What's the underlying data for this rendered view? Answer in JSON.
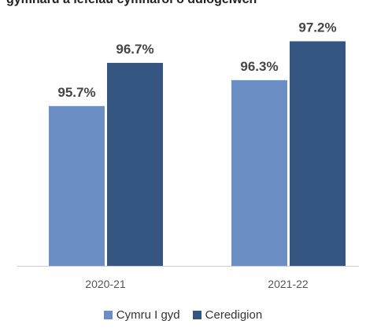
{
  "header_fragment": "gymharu â lefelau cymharol o ddiogelwch",
  "chart_data": {
    "type": "bar",
    "categories": [
      "2020-21",
      "2021-22"
    ],
    "series": [
      {
        "name": "Cymru I gyd",
        "values": [
          95.7,
          96.3
        ],
        "labels": [
          "95.7%",
          "96.3%"
        ],
        "color": "#6b8fc4"
      },
      {
        "name": "Ceredigion",
        "values": [
          96.7,
          97.2
        ],
        "labels": [
          "96.7%",
          "97.2%"
        ],
        "color": "#355680"
      }
    ],
    "ylim": [
      92,
      97.5
    ],
    "grid": false,
    "legend": "bottom-center",
    "axis_color": "#cccccc",
    "title": "",
    "xlabel": "",
    "ylabel": ""
  }
}
